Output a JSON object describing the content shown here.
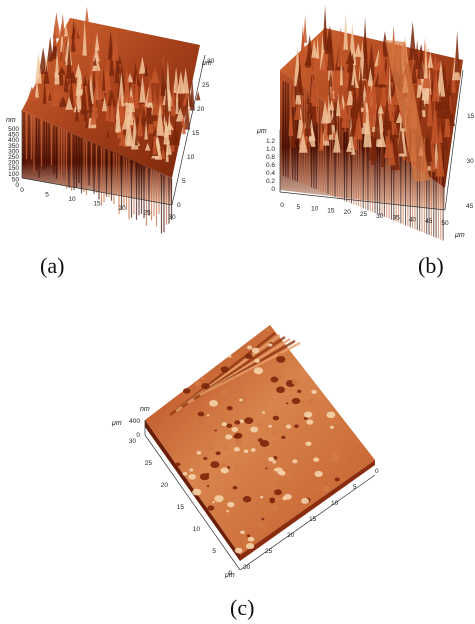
{
  "panels": [
    {
      "id": "a",
      "caption": "(a)",
      "z_unit": "nm",
      "z_ticks": [
        "500",
        "450",
        "400",
        "350",
        "300",
        "250",
        "200",
        "150",
        "100",
        "50",
        "0"
      ],
      "x_ticks": [
        "0",
        "5",
        "10",
        "15",
        "20",
        "25",
        "30"
      ],
      "x_unit": "",
      "y_ticks": [
        "0",
        "5",
        "10",
        "15",
        "20",
        "25",
        "30"
      ],
      "y_unit": "μm"
    },
    {
      "id": "b",
      "caption": "(b)",
      "z_unit": "μm",
      "z_ticks": [
        "1.2",
        "1.0",
        "0.8",
        "0.6",
        "0.4",
        "0.2",
        "0"
      ],
      "x_ticks": [
        "0",
        "5",
        "10",
        "15",
        "20",
        "25",
        "30",
        "35",
        "40",
        "45",
        "50"
      ],
      "x_unit": "μm",
      "y_ticks": [
        "15",
        "30",
        "45"
      ],
      "y_unit": ""
    },
    {
      "id": "c",
      "caption": "(c)",
      "z_unit": "nm",
      "z_ticks": [
        "400",
        "0"
      ],
      "z_side_unit": "μm",
      "y_ticks": [
        "30",
        "25",
        "20",
        "15",
        "10",
        "5",
        "0"
      ],
      "x_ticks": [
        "0",
        "5",
        "10",
        "15",
        "20",
        "25",
        "30"
      ],
      "x_unit": "μm"
    }
  ],
  "colors": {
    "surface_dark": "#3a0d03",
    "surface_mid": "#b4461a",
    "surface_light": "#f0b27a"
  }
}
